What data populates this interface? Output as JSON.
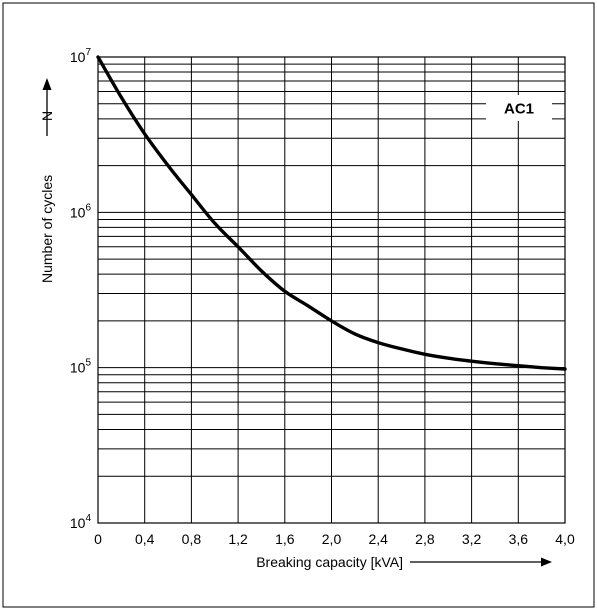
{
  "chart_data": {
    "type": "line",
    "title": "",
    "xlabel": "Breaking capacity [kVA]",
    "ylabel": "Number of cycles",
    "ylabel_symbol": "N",
    "x_ticks": [
      0,
      0.4,
      0.8,
      1.2,
      1.6,
      2.0,
      2.4,
      2.8,
      3.2,
      3.6,
      4.0
    ],
    "x_tick_labels": [
      "0",
      "0,4",
      "0,8",
      "1,2",
      "1,6",
      "2,0",
      "2,4",
      "2,8",
      "3,2",
      "3,6",
      "4,0"
    ],
    "y_tick_labels": [
      {
        "base": "10",
        "exp": "4"
      },
      {
        "base": "10",
        "exp": "5"
      },
      {
        "base": "10",
        "exp": "6"
      },
      {
        "base": "10",
        "exp": "7"
      }
    ],
    "xlim": [
      0,
      4.0
    ],
    "ylim": [
      10000,
      10000000
    ],
    "y_scale": "log",
    "grid": true,
    "series": [
      {
        "name": "AC1",
        "x": [
          0,
          0.2,
          0.4,
          0.6,
          0.8,
          1.0,
          1.2,
          1.4,
          1.6,
          1.8,
          2.0,
          2.2,
          2.4,
          2.6,
          2.8,
          3.0,
          3.2,
          3.4,
          3.6,
          3.8,
          4.0
        ],
        "y": [
          10000000,
          5500000,
          3200000,
          2000000,
          1300000,
          850000,
          600000,
          420000,
          310000,
          250000,
          200000,
          165000,
          145000,
          132000,
          122000,
          115000,
          110000,
          106000,
          103000,
          100000,
          98000
        ]
      }
    ],
    "colors": {
      "line": "#000000",
      "grid": "#000000",
      "background": "#ffffff"
    }
  }
}
